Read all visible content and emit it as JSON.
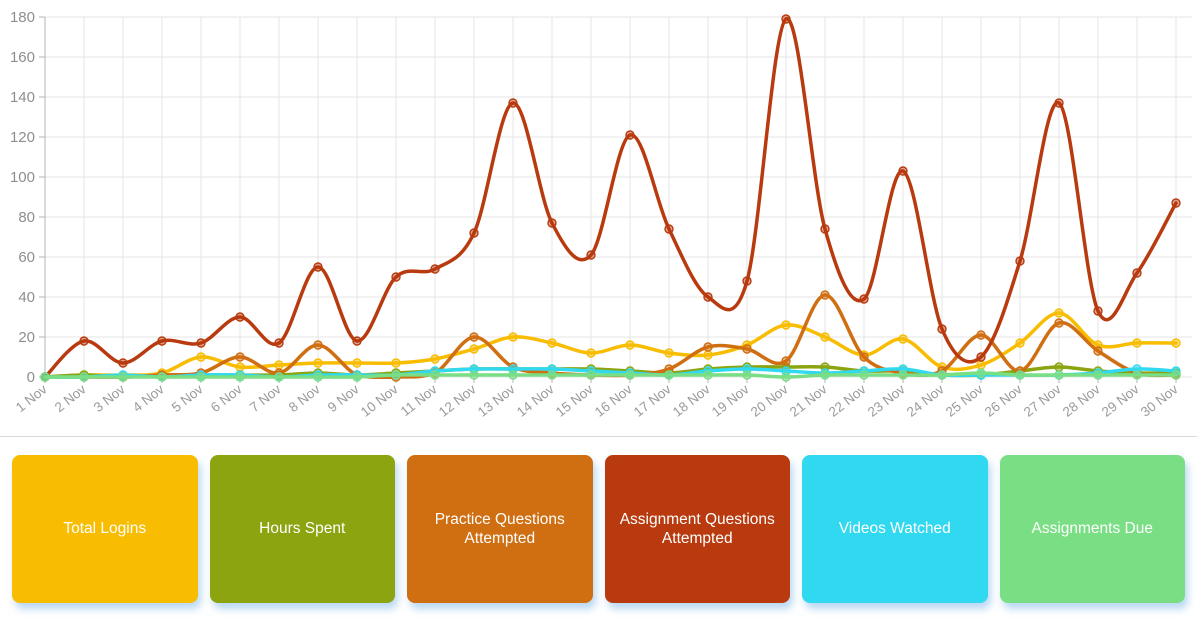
{
  "chart_data": {
    "type": "line",
    "title": "",
    "xlabel": "",
    "ylabel": "",
    "ylim": [
      0,
      180
    ],
    "y_tick_step": 20,
    "y_tick_labels": [
      "0",
      "20",
      "40",
      "60",
      "80",
      "100",
      "120",
      "140",
      "160",
      "180"
    ],
    "grid": true,
    "legend_position": "bottom-cards",
    "x": [
      "1 Nov",
      "2 Nov",
      "3 Nov",
      "4 Nov",
      "5 Nov",
      "6 Nov",
      "7 Nov",
      "8 Nov",
      "9 Nov",
      "10 Nov",
      "11 Nov",
      "12 Nov",
      "13 Nov",
      "14 Nov",
      "15 Nov",
      "16 Nov",
      "17 Nov",
      "18 Nov",
      "19 Nov",
      "20 Nov",
      "21 Nov",
      "22 Nov",
      "23 Nov",
      "24 Nov",
      "25 Nov",
      "26 Nov",
      "27 Nov",
      "28 Nov",
      "29 Nov",
      "30 Nov"
    ],
    "series": [
      {
        "name": "Total Logins",
        "color": "#F8BC01",
        "values": [
          0,
          1,
          1,
          2,
          10,
          5,
          6,
          7,
          7,
          7,
          9,
          14,
          20,
          17,
          12,
          16,
          12,
          11,
          16,
          26,
          20,
          11,
          19,
          5,
          6,
          17,
          32,
          16,
          17,
          17
        ]
      },
      {
        "name": "Hours Spent",
        "color": "#8BA410",
        "values": [
          0,
          1,
          0,
          1,
          1,
          1,
          1,
          2,
          1,
          2,
          3,
          4,
          4,
          4,
          4,
          3,
          2,
          4,
          5,
          5,
          5,
          3,
          3,
          1,
          1,
          3,
          5,
          3,
          2,
          2
        ]
      },
      {
        "name": "Practice Questions Attempted",
        "color": "#D06E12",
        "values": [
          0,
          0,
          0,
          1,
          2,
          10,
          2,
          16,
          1,
          0,
          2,
          20,
          5,
          2,
          1,
          1,
          4,
          15,
          14,
          8,
          41,
          10,
          2,
          3,
          21,
          3,
          27,
          13,
          2,
          1
        ]
      },
      {
        "name": "Assignment Questions Attempted",
        "color": "#B83A0E",
        "values": [
          0,
          18,
          7,
          18,
          17,
          30,
          17,
          55,
          18,
          50,
          54,
          72,
          137,
          77,
          61,
          121,
          74,
          40,
          48,
          179,
          74,
          39,
          103,
          24,
          10,
          58,
          137,
          33,
          52,
          87
        ]
      },
      {
        "name": "Videos Watched",
        "color": "#30D9F0",
        "values": [
          0,
          0,
          1,
          0,
          1,
          1,
          0,
          1,
          1,
          1,
          3,
          4,
          4,
          4,
          3,
          2,
          1,
          3,
          4,
          3,
          2,
          3,
          4,
          1,
          1,
          1,
          1,
          2,
          4,
          3
        ]
      },
      {
        "name": "Assignments Due",
        "color": "#79DE84",
        "values": [
          0,
          0,
          0,
          0,
          0,
          0,
          0,
          0,
          0,
          1,
          1,
          1,
          1,
          1,
          1,
          1,
          1,
          1,
          1,
          0,
          1,
          1,
          1,
          1,
          2,
          1,
          1,
          1,
          1,
          1
        ]
      }
    ],
    "axis": {
      "tick_label_color": "#8e8e8e",
      "date_label_color": "#9a9a9a",
      "grid_color": "#e4e4e4",
      "axis_line_color": "#b5b5b5"
    }
  },
  "legend_cards": [
    {
      "id": "total-logins",
      "label": "Total Logins",
      "color": "#F8BC01"
    },
    {
      "id": "hours-spent",
      "label": "Hours Spent",
      "color": "#8BA410"
    },
    {
      "id": "practice-questions-attempted",
      "label": "Practice Questions Attempted",
      "color": "#D06E12"
    },
    {
      "id": "assignment-questions-attempted",
      "label": "Assignment Questions Attempted",
      "color": "#B83A0E"
    },
    {
      "id": "videos-watched",
      "label": "Videos Watched",
      "color": "#30D9F0"
    },
    {
      "id": "assignments-due",
      "label": "Assignments Due",
      "color": "#79DE84"
    }
  ]
}
